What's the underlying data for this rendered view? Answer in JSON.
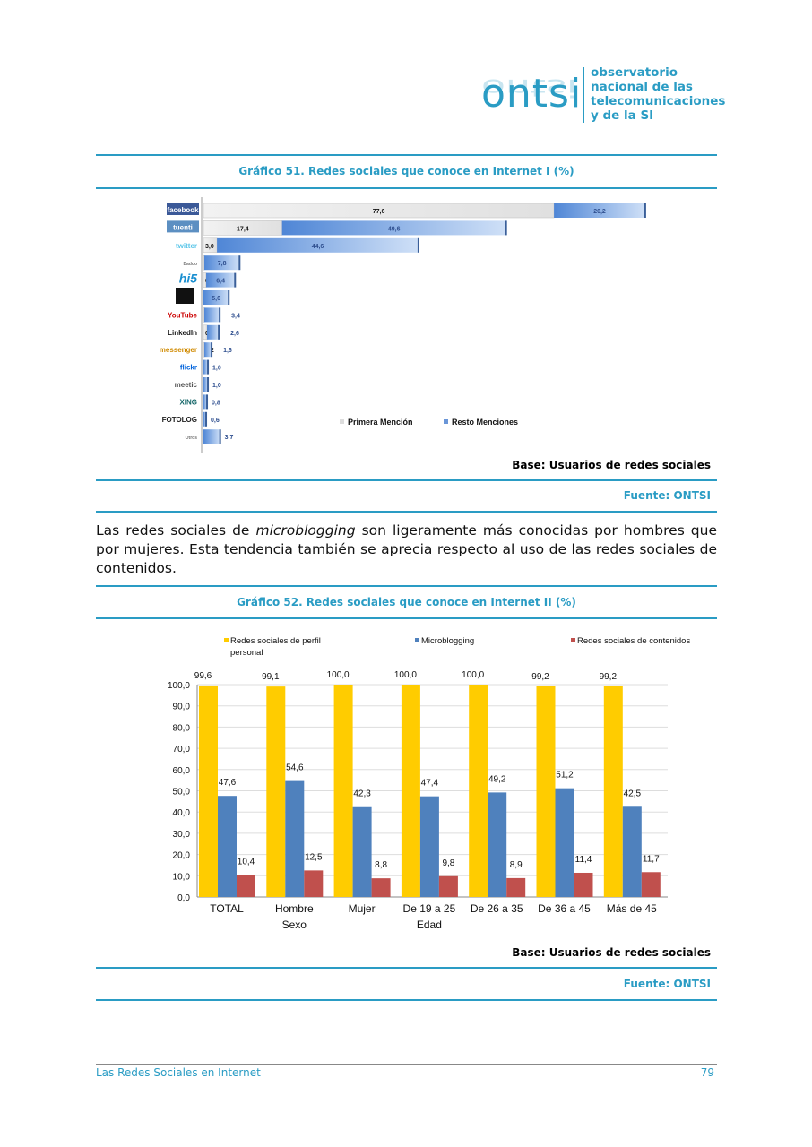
{
  "header": {
    "logo_word": "ontsi",
    "logo_lines": [
      "observatorio",
      "nacional de las",
      "telecomunicaciones",
      "y de la SI"
    ]
  },
  "chart1_title": "Gráfico 51. Redes sociales que conoce en Internet I (%)",
  "chart1_base": "Base: Usuarios de redes sociales",
  "chart1_source": "Fuente: ONTSI",
  "paragraph": {
    "before": "Las redes sociales de ",
    "emph": "microblogging",
    "after": " son ligeramente más conocidas por hombres que por mujeres. Esta tendencia también se aprecia respecto al uso de las redes sociales de contenidos."
  },
  "chart2_title": "Gráfico 52. Redes sociales que conoce en Internet II (%)",
  "chart2_base": "Base: Usuarios de redes sociales",
  "chart2_source": "Fuente: ONTSI",
  "footer": {
    "left": "Las Redes Sociales en Internet",
    "page": "79"
  },
  "chart_data": [
    {
      "type": "bar",
      "orientation": "horizontal",
      "stacked": true,
      "categories": [
        "facebook",
        "tuenti",
        "twitter",
        "Badoo",
        "hi5",
        "",
        "YouTube",
        "LinkedIn",
        "messenger",
        "flickr",
        "meetic",
        "XING",
        "FOTOLOG",
        "Otros"
      ],
      "series": [
        {
          "name": "Primera Mención",
          "color": "#e4e4e4",
          "values": [
            77.6,
            17.4,
            3.0,
            0.2,
            0.6,
            null,
            0.2,
            0.8,
            0.2,
            null,
            null,
            null,
            null,
            null
          ]
        },
        {
          "name": "Resto Menciones",
          "color": "#4f86d6",
          "values": [
            20.2,
            49.6,
            44.6,
            7.8,
            6.4,
            5.6,
            3.4,
            2.6,
            1.6,
            1.0,
            1.0,
            0.8,
            0.6,
            3.7
          ]
        }
      ],
      "legend": "center-bottom"
    },
    {
      "type": "bar",
      "categories": [
        "TOTAL",
        "Hombre",
        "Mujer",
        "De 19 a 25",
        "De 26 a 35",
        "De 36 a 45",
        "Más de 45"
      ],
      "group_labels": [
        {
          "label": "Sexo",
          "under": "Hombre"
        },
        {
          "label": "Edad",
          "under": "De 19 a 25"
        }
      ],
      "series": [
        {
          "name": "Redes sociales de perfil personal",
          "color": "#ffcc00",
          "values": [
            99.6,
            99.1,
            100.0,
            100.0,
            100.0,
            99.2,
            99.2
          ]
        },
        {
          "name": "Microblogging",
          "color": "#4f81bd",
          "values": [
            47.6,
            54.6,
            42.3,
            47.4,
            49.2,
            51.2,
            42.5
          ]
        },
        {
          "name": "Redes sociales de contenidos",
          "color": "#c0504d",
          "values": [
            10.4,
            12.5,
            8.8,
            9.8,
            8.9,
            11.4,
            11.7
          ]
        }
      ],
      "ylim": [
        0,
        100
      ],
      "yticks": [
        "0,0",
        "10,0",
        "20,0",
        "30,0",
        "40,0",
        "50,0",
        "60,0",
        "70,0",
        "80,0",
        "90,0",
        "100,0"
      ],
      "grid": true,
      "legend": "top"
    }
  ]
}
